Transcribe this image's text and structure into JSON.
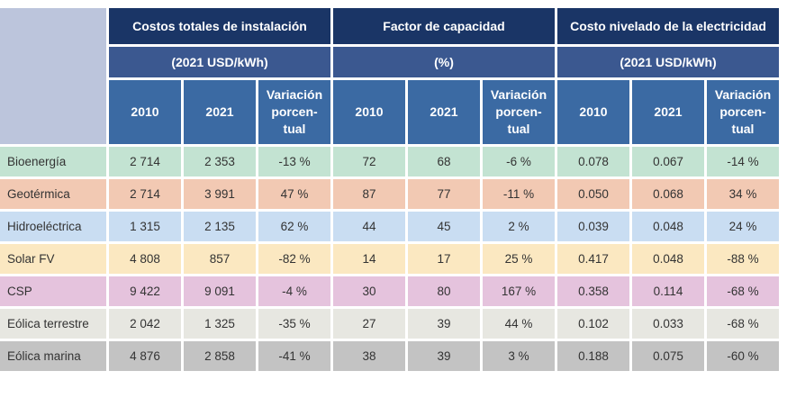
{
  "groups": [
    {
      "title": "Costos totales de instalación",
      "unit": "(2021 USD/kWh)"
    },
    {
      "title": "Factor de capacidad",
      "unit": "(%)"
    },
    {
      "title": "Costo nivelado de la electricidad",
      "unit": "(2021 USD/kWh)"
    }
  ],
  "subheaders": {
    "y2010": "2010",
    "y2021": "2021",
    "var_l1": "Variación",
    "var_l2": "porcen-",
    "var_l3": "tual"
  },
  "rows": [
    {
      "label": "Bioenergía",
      "color": "#c3e3d2",
      "cells": [
        "2 714",
        "2 353",
        "-13 %",
        "72",
        "68",
        "-6 %",
        "0.078",
        "0.067",
        "-14 %"
      ]
    },
    {
      "label": "Geotérmica",
      "color": "#f2c9b3",
      "cells": [
        "2 714",
        "3 991",
        "47 %",
        "87",
        "77",
        "-11 %",
        "0.050",
        "0.068",
        "34 %"
      ]
    },
    {
      "label": "Hidroeléctrica",
      "color": "#c9ddf2",
      "cells": [
        "1 315",
        "2 135",
        "62 %",
        "44",
        "45",
        "2 %",
        "0.039",
        "0.048",
        "24 %"
      ]
    },
    {
      "label": "Solar FV",
      "color": "#fbe8c1",
      "cells": [
        "4 808",
        "857",
        "-82 %",
        "14",
        "17",
        "25 %",
        "0.417",
        "0.048",
        "-88 %"
      ]
    },
    {
      "label": "CSP",
      "color": "#e5c3dd",
      "cells": [
        "9 422",
        "9 091",
        "-4 %",
        "30",
        "80",
        "167 %",
        "0.358",
        "0.114",
        "-68 %"
      ]
    },
    {
      "label": "Eólica terrestre",
      "color": "#e7e7e1",
      "cells": [
        "2 042",
        "1 325",
        "-35 %",
        "27",
        "39",
        "44 %",
        "0.102",
        "0.033",
        "-68 %"
      ]
    },
    {
      "label": "Eólica marina",
      "color": "#c3c3c3",
      "cells": [
        "4 876",
        "2 858",
        "-41 %",
        "38",
        "39",
        "3 %",
        "0.188",
        "0.075",
        "-60 %"
      ]
    }
  ]
}
